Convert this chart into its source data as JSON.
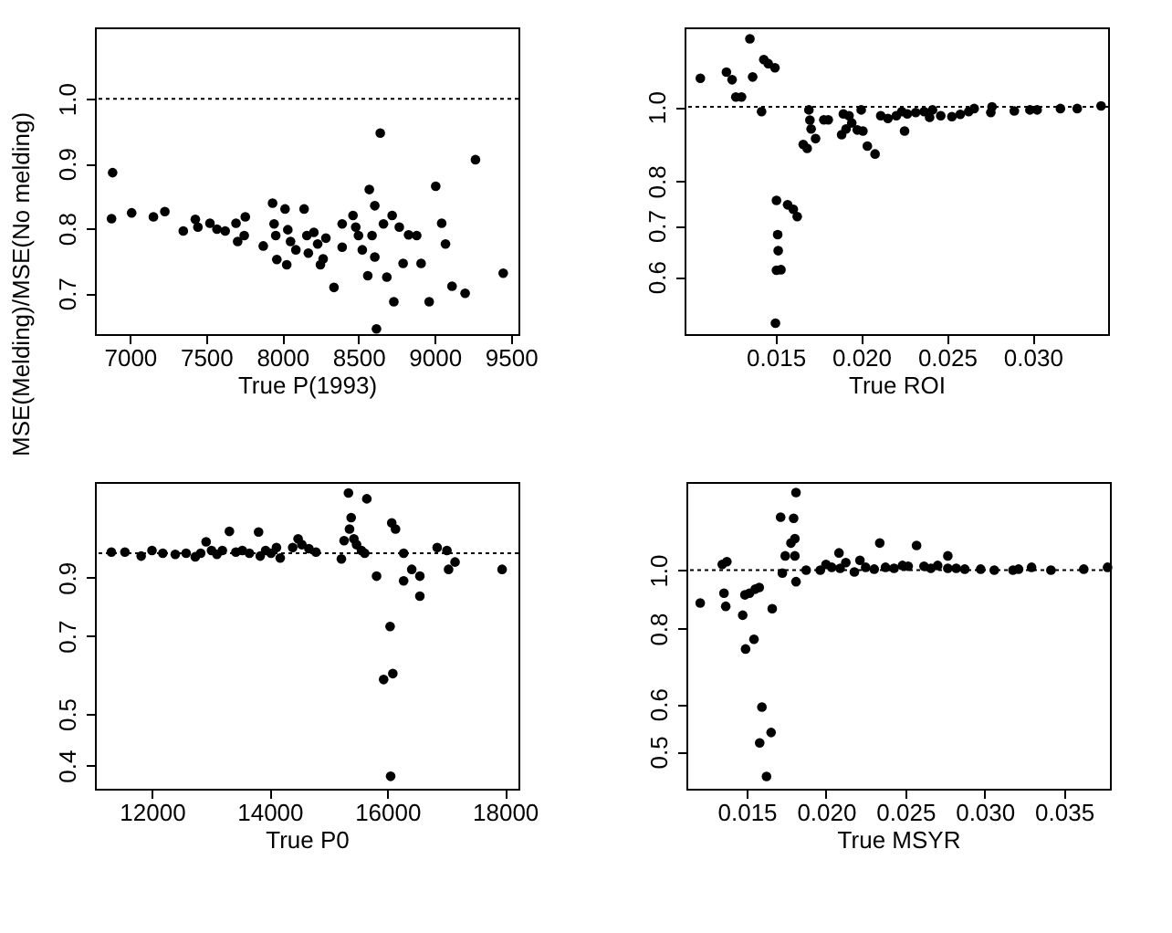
{
  "chart_data": [
    {
      "type": "scatter",
      "xlabel": "True P(1993)",
      "ylabel": "MSE(Melding)/MSE(No melding)",
      "color": "#000000",
      "marker": "circle",
      "grid": false,
      "xlim": [
        6770,
        9550
      ],
      "ylim": [
        0.637,
        1.11
      ],
      "xticks": [
        7000,
        7500,
        8000,
        8500,
        9000,
        9500
      ],
      "yticks": [
        {
          "value": 0.7,
          "label": "0.7"
        },
        {
          "value": 0.8,
          "label": "0.8"
        },
        {
          "value": 0.9,
          "label": "0.9"
        },
        {
          "value": 1,
          "label": "1.0"
        }
      ],
      "ref_lines": [
        {
          "axis": "y",
          "value": 1,
          "line_style": "dotted"
        }
      ],
      "x": [
        6886,
        6879,
        7011,
        7154,
        7229,
        7350,
        7429,
        7446,
        7525,
        7571,
        7625,
        7696,
        7707,
        7757,
        7750,
        7875,
        7936,
        7946,
        7957,
        7964,
        8018,
        8029,
        8036,
        8054,
        8089,
        8143,
        8161,
        8171,
        8207,
        8232,
        8250,
        8268,
        8286,
        8339,
        8393,
        8393,
        8464,
        8482,
        8500,
        8525,
        8561,
        8571,
        8589,
        8607,
        8607,
        8618,
        8643,
        8664,
        8686,
        8721,
        8732,
        8768,
        8793,
        8829,
        8882,
        8911,
        8964,
        9007,
        9046,
        9071,
        9114,
        9200,
        9268,
        9450
      ],
      "values": [
        0.886,
        0.815,
        0.824,
        0.818,
        0.826,
        0.796,
        0.814,
        0.802,
        0.808,
        0.799,
        0.796,
        0.808,
        0.78,
        0.818,
        0.789,
        0.773,
        0.839,
        0.807,
        0.789,
        0.752,
        0.83,
        0.744,
        0.798,
        0.78,
        0.767,
        0.83,
        0.789,
        0.762,
        0.794,
        0.776,
        0.744,
        0.753,
        0.785,
        0.709,
        0.771,
        0.807,
        0.82,
        0.802,
        0.789,
        0.767,
        0.727,
        0.86,
        0.789,
        0.835,
        0.756,
        0.645,
        0.947,
        0.807,
        0.725,
        0.82,
        0.687,
        0.802,
        0.746,
        0.79,
        0.789,
        0.746,
        0.687,
        0.865,
        0.808,
        0.776,
        0.711,
        0.7,
        0.906,
        0.731
      ]
    },
    {
      "type": "scatter",
      "xlabel": "True ROI",
      "color": "#000000",
      "marker": "circle",
      "grid": false,
      "log": "y",
      "xlim": [
        0.0097,
        0.0344
      ],
      "ylim": [
        0.505,
        1.27
      ],
      "xticks": [
        {
          "value": 0.015,
          "label": "0.015"
        },
        {
          "value": 0.02,
          "label": "0.020"
        },
        {
          "value": 0.025,
          "label": "0.025"
        },
        {
          "value": 0.03,
          "label": "0.030"
        }
      ],
      "yticks": [
        {
          "value": 0.6,
          "label": "0.6"
        },
        {
          "value": 0.7,
          "label": "0.7"
        },
        {
          "value": 0.8,
          "label": "0.8"
        },
        {
          "value": 1,
          "label": "1.0"
        }
      ],
      "ref_lines": [
        {
          "axis": "y",
          "value": 1,
          "line_style": "dotted"
        }
      ],
      "x": [
        0.01062,
        0.01214,
        0.01247,
        0.01269,
        0.01302,
        0.01351,
        0.01367,
        0.01419,
        0.01432,
        0.01458,
        0.01497,
        0.015,
        0.01506,
        0.01513,
        0.01516,
        0.01506,
        0.01532,
        0.01571,
        0.01604,
        0.01627,
        0.01662,
        0.01685,
        0.01695,
        0.01701,
        0.01708,
        0.01734,
        0.01782,
        0.01808,
        0.01896,
        0.01886,
        0.01912,
        0.01929,
        0.01945,
        0.01977,
        0.02,
        0.0201,
        0.02036,
        0.02081,
        0.02114,
        0.02156,
        0.02205,
        0.02237,
        0.02253,
        0.02269,
        0.02318,
        0.02367,
        0.02399,
        0.02416,
        0.02464,
        0.02529,
        0.02578,
        0.02627,
        0.02659,
        0.02756,
        0.02763,
        0.02893,
        0.02984,
        0.03026,
        0.03162,
        0.0326,
        0.03399
      ],
      "values": [
        1.09,
        1.11,
        1.085,
        1.03,
        1.03,
        1.227,
        1.094,
        0.986,
        1.153,
        1.139,
        1.125,
        0.522,
        0.755,
        0.681,
        0.649,
        0.612,
        0.613,
        0.745,
        0.735,
        0.719,
        0.893,
        0.883,
        0.991,
        0.961,
        0.936,
        0.909,
        0.962,
        0.962,
        0.979,
        0.92,
        0.936,
        0.974,
        0.953,
        0.933,
        0.991,
        0.93,
        0.889,
        0.868,
        0.974,
        0.966,
        0.974,
        0.986,
        0.93,
        0.979,
        0.983,
        0.986,
        0.969,
        0.991,
        0.974,
        0.971,
        0.978,
        0.986,
        0.995,
        0.983,
        1.0,
        0.988,
        0.991,
        0.991,
        0.995,
        0.995,
        1.003
      ]
    },
    {
      "type": "scatter",
      "xlabel": "True P0",
      "color": "#000000",
      "marker": "circle",
      "grid": false,
      "log": "y",
      "xlim": [
        11030,
        18230
      ],
      "ylim": [
        0.362,
        1.36
      ],
      "xticks": [
        12000,
        14000,
        16000,
        18000
      ],
      "yticks": [
        {
          "value": 0.4,
          "label": "0.4"
        },
        {
          "value": 0.5,
          "label": "0.5"
        },
        {
          "value": 0.7,
          "label": "0.7"
        },
        {
          "value": 0.9,
          "label": "0.9"
        }
      ],
      "ref_lines": [
        {
          "axis": "y",
          "value": 1,
          "line_style": "dotted"
        }
      ],
      "x": [
        11310,
        11540,
        11816,
        12000,
        12184,
        12396,
        12580,
        12736,
        12828,
        12920,
        13012,
        13104,
        13196,
        13316,
        13426,
        13536,
        13656,
        13812,
        13840,
        13932,
        14024,
        14116,
        14180,
        14392,
        14484,
        14548,
        14668,
        14788,
        15220,
        15266,
        15340,
        15358,
        15386,
        15432,
        15478,
        15561,
        15616,
        15652,
        15818,
        15938,
        16048,
        16057,
        16094,
        16076,
        16140,
        16278,
        16278,
        16416,
        16554,
        16554,
        16848,
        17014,
        17042,
        17152,
        17952
      ],
      "values": [
        1.005,
        1.005,
        0.988,
        1.012,
        1.0,
        0.995,
        1.0,
        0.985,
        1.0,
        1.051,
        1.012,
        0.995,
        1.012,
        1.099,
        1.005,
        1.012,
        1.0,
        1.096,
        0.988,
        1.012,
        1.0,
        1.025,
        0.98,
        1.025,
        1.064,
        1.038,
        1.02,
        1.005,
        0.976,
        1.056,
        1.297,
        1.11,
        1.166,
        1.064,
        1.038,
        1.012,
        1.0,
        1.265,
        0.906,
        0.58,
        0.729,
        0.382,
        0.595,
        1.14,
        1.11,
        1.0,
        0.888,
        0.933,
        0.906,
        0.831,
        1.025,
        1.012,
        0.933,
        0.963,
        0.933
      ]
    },
    {
      "type": "scatter",
      "xlabel": "True MSYR",
      "color": "#000000",
      "marker": "circle",
      "grid": false,
      "log": "y",
      "xlim": [
        0.0112,
        0.0379
      ],
      "ylim": [
        0.434,
        1.4
      ],
      "xticks": [
        {
          "value": 0.015,
          "label": "0.015"
        },
        {
          "value": 0.02,
          "label": "0.020"
        },
        {
          "value": 0.025,
          "label": "0.025"
        },
        {
          "value": 0.03,
          "label": "0.030"
        },
        {
          "value": 0.035,
          "label": "0.035"
        }
      ],
      "yticks": [
        {
          "value": 0.5,
          "label": "0.5"
        },
        {
          "value": 0.6,
          "label": "0.6"
        },
        {
          "value": 0.8,
          "label": "0.8"
        },
        {
          "value": 1,
          "label": "1.0"
        }
      ],
      "ref_lines": [
        {
          "axis": "y",
          "value": 1,
          "line_style": "dotted"
        }
      ],
      "x": [
        0.01207,
        0.01346,
        0.01357,
        0.01368,
        0.01375,
        0.01475,
        0.01489,
        0.01493,
        0.01518,
        0.01546,
        0.01554,
        0.01579,
        0.01582,
        0.01596,
        0.01625,
        0.01654,
        0.01661,
        0.01714,
        0.01725,
        0.01743,
        0.01779,
        0.01796,
        0.01804,
        0.01811,
        0.01804,
        0.01811,
        0.01875,
        0.01964,
        0.02,
        0.02036,
        0.02082,
        0.02089,
        0.02125,
        0.02179,
        0.02214,
        0.0225,
        0.02304,
        0.02339,
        0.02375,
        0.02429,
        0.02482,
        0.02518,
        0.02571,
        0.02618,
        0.02661,
        0.02704,
        0.02768,
        0.02768,
        0.02821,
        0.02875,
        0.02975,
        0.03061,
        0.03179,
        0.03214,
        0.03296,
        0.03418,
        0.03625,
        0.03775
      ],
      "values": [
        0.882,
        1.022,
        0.916,
        0.871,
        1.033,
        0.842,
        0.91,
        0.74,
        0.916,
        0.768,
        0.93,
        0.936,
        0.517,
        0.593,
        0.455,
        0.538,
        0.863,
        1.224,
        0.989,
        1.056,
        1.109,
        1.219,
        1.128,
        1.345,
        1.056,
        0.957,
        1.0,
        1.0,
        1.022,
        1.011,
        1.068,
        1.007,
        1.029,
        0.993,
        1.038,
        1.011,
        1.004,
        1.109,
        1.011,
        1.007,
        1.018,
        1.015,
        1.099,
        1.015,
        1.007,
        1.018,
        1.056,
        1.007,
        1.007,
        1.004,
        1.004,
        1.0,
        1.0,
        1.004,
        1.011,
        1.0,
        1.004,
        1.011
      ]
    }
  ]
}
